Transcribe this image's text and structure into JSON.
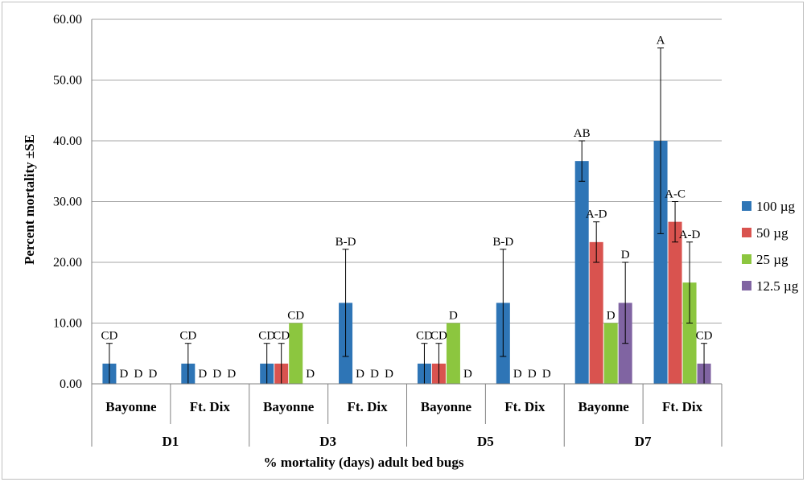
{
  "chart_data": {
    "type": "bar",
    "ylabel": "Percent mortality ±SE",
    "xlabel": "% mortality (days) adult bed bugs",
    "ylim": [
      0,
      60
    ],
    "yticks": [
      "0.00",
      "10.00",
      "20.00",
      "30.00",
      "40.00",
      "50.00",
      "60.00"
    ],
    "grid": true,
    "legend_position": "right",
    "groups": [
      "D1",
      "D3",
      "D5",
      "D7"
    ],
    "sites": [
      "Bayonne",
      "Ft. Dix"
    ],
    "categories": [
      "D1 Bayonne",
      "D1 Ft. Dix",
      "D3 Bayonne",
      "D3 Ft. Dix",
      "D5 Bayonne",
      "D5 Ft. Dix",
      "D7 Bayonne",
      "D7 Ft. Dix"
    ],
    "series": [
      {
        "name": "100 µg",
        "color": "#2e75b6",
        "values": [
          3.33,
          3.33,
          3.33,
          13.33,
          3.33,
          13.33,
          36.67,
          40.0
        ],
        "errors": [
          3.33,
          3.33,
          3.33,
          8.82,
          3.33,
          8.82,
          3.33,
          15.28
        ],
        "letters": [
          "CD",
          "CD",
          "CD",
          "B-D",
          "CD",
          "B-D",
          "AB",
          "A"
        ]
      },
      {
        "name": "50 µg",
        "color": "#d9534f",
        "values": [
          0,
          0,
          3.33,
          0,
          3.33,
          0,
          23.33,
          26.67
        ],
        "errors": [
          0,
          0,
          3.33,
          0,
          3.33,
          0,
          3.33,
          3.33
        ],
        "letters": [
          "D",
          "D",
          "CD",
          "D",
          "CD",
          "D",
          "A-D",
          "A-C"
        ]
      },
      {
        "name": "25 µg",
        "color": "#8cc63f",
        "values": [
          0,
          0,
          10.0,
          0,
          10.0,
          0,
          10.0,
          16.67
        ],
        "errors": [
          0,
          0,
          0,
          0,
          0,
          0,
          0,
          6.67
        ],
        "letters": [
          "D",
          "D",
          "CD",
          "D",
          "D",
          "D",
          "D",
          "A-D"
        ]
      },
      {
        "name": "12.5 µg",
        "color": "#8064a2",
        "values": [
          0,
          0,
          0,
          0,
          0,
          0,
          13.33,
          3.33
        ],
        "errors": [
          0,
          0,
          0,
          0,
          0,
          0,
          6.67,
          3.33
        ],
        "letters": [
          "D",
          "D",
          "D",
          "D",
          "D",
          "D",
          "D",
          "CD"
        ]
      }
    ]
  }
}
